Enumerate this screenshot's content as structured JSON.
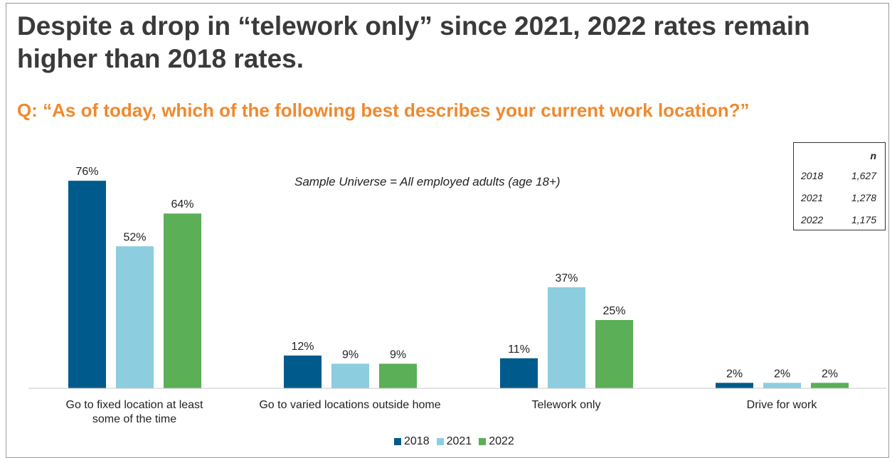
{
  "title": "Despite a drop in “telework only” since 2021, 2022 rates remain higher than 2018 rates.",
  "question": "Q: “As of today, which of the following best describes your current work location?”",
  "note": "Sample Universe = All employed adults (age 18+)",
  "sample_table": {
    "header": "n",
    "rows": [
      {
        "year": "2018",
        "n": "1,627"
      },
      {
        "year": "2021",
        "n": "1,278"
      },
      {
        "year": "2022",
        "n": "1,175"
      }
    ]
  },
  "colors": {
    "2018": "#005b8c",
    "2021": "#8ccde0",
    "2022": "#5aaf57",
    "title": "#3a3a3a",
    "question": "#f0892e"
  },
  "chart_data": {
    "type": "bar",
    "categories": [
      "Go to fixed location at least some of the time",
      "Go to varied locations outside home",
      "Telework only",
      "Drive for work"
    ],
    "category_lines": [
      [
        "Go to fixed location at least",
        "some of the time"
      ],
      [
        "Go to varied locations outside home"
      ],
      [
        "Telework only"
      ],
      [
        "Drive for work"
      ]
    ],
    "series": [
      {
        "name": "2018",
        "values": [
          76,
          12,
          11,
          2
        ]
      },
      {
        "name": "2021",
        "values": [
          52,
          9,
          37,
          2
        ]
      },
      {
        "name": "2022",
        "values": [
          64,
          9,
          25,
          2
        ]
      }
    ],
    "value_suffix": "%",
    "ylim": [
      0,
      100
    ],
    "grid": false,
    "legend": "bottom"
  }
}
